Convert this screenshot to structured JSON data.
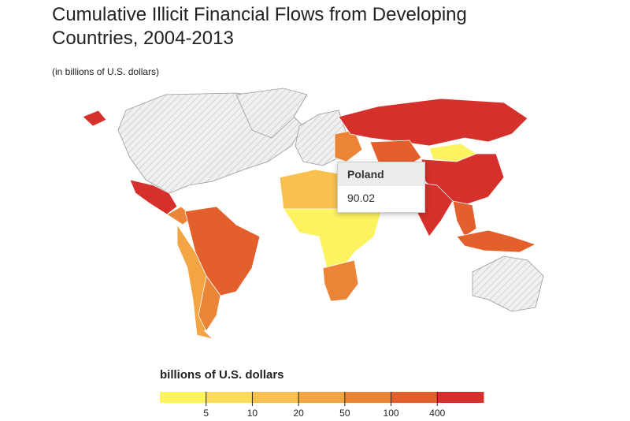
{
  "header": {
    "title": "Cumulative Illicit Financial Flows from Developing Countries, 2004-2013",
    "subtitle": "(in billions of U.S. dollars)"
  },
  "tooltip": {
    "country": "Poland",
    "value": "90.02"
  },
  "legend": {
    "title": "billions of U.S. dollars",
    "colors": [
      "#fcf35f",
      "#fbdc5b",
      "#f8c04f",
      "#f3a443",
      "#ec8437",
      "#e3602d",
      "#d5302b"
    ],
    "ticks": [
      5,
      10,
      20,
      50,
      100,
      400
    ]
  }
}
